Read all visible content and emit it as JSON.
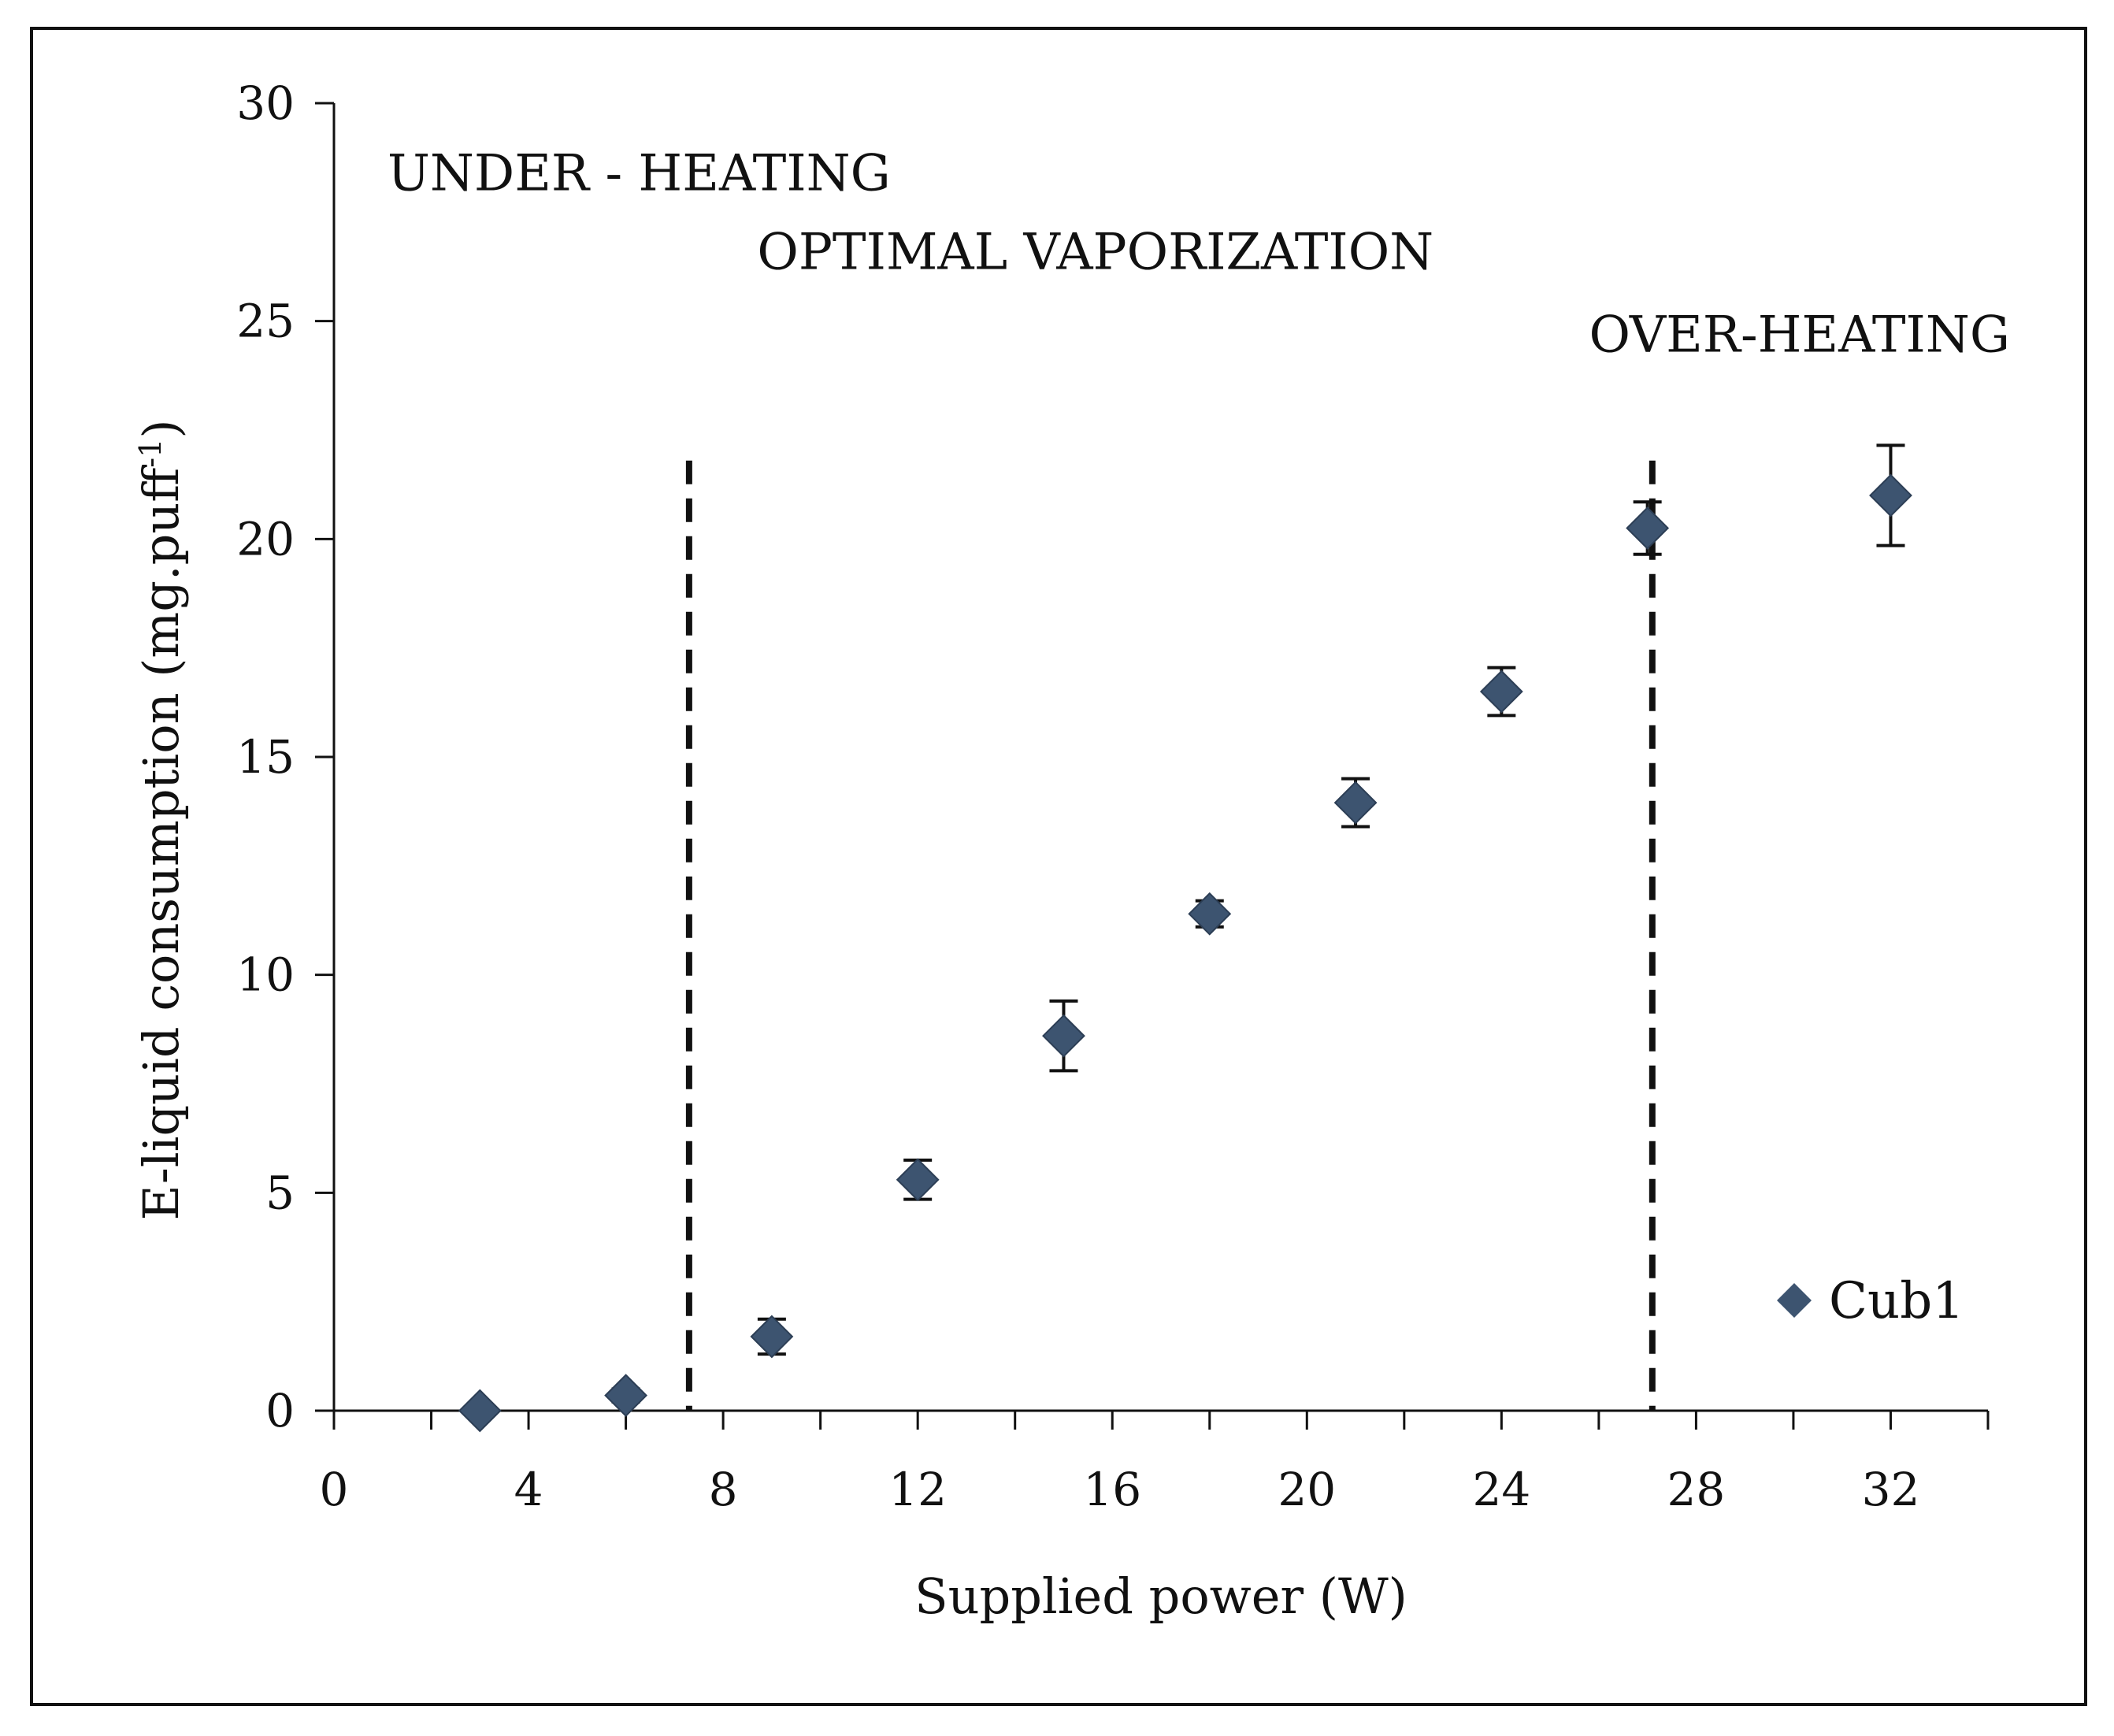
{
  "chart_data": {
    "type": "scatter",
    "xlabel": "Supplied power (W)",
    "ylabel": "E-liquid consumption (mg.puff",
    "ylabel_sup": "-1",
    "ylabel_close": ")",
    "xlim": [
      0,
      34
    ],
    "ylim": [
      0,
      30
    ],
    "xticks": [
      0,
      4,
      8,
      12,
      16,
      20,
      24,
      28,
      32
    ],
    "xminor_step": 2,
    "yticks": [
      0,
      5,
      10,
      15,
      20,
      25,
      30
    ],
    "grid": false,
    "legend_position": "bottom-right",
    "series": [
      {
        "name": "Cub1",
        "color": "#3d5470",
        "marker": "diamond",
        "points": [
          {
            "x": 3,
            "y": 0.0,
            "err": 0.0
          },
          {
            "x": 6,
            "y": 0.35,
            "err": 0.15
          },
          {
            "x": 9,
            "y": 1.7,
            "err": 0.4
          },
          {
            "x": 12,
            "y": 5.3,
            "err": 0.45
          },
          {
            "x": 15,
            "y": 8.6,
            "err": 0.8
          },
          {
            "x": 18,
            "y": 11.4,
            "err": 0.3
          },
          {
            "x": 21,
            "y": 13.95,
            "err": 0.55
          },
          {
            "x": 24,
            "y": 16.5,
            "err": 0.55
          },
          {
            "x": 27,
            "y": 20.25,
            "err": 0.6
          },
          {
            "x": 32,
            "y": 21.0,
            "err": 1.15
          }
        ]
      }
    ],
    "vlines": [
      {
        "x": 7.3,
        "y_top": 21.8,
        "style": "dashed"
      },
      {
        "x": 27.1,
        "y_top": 21.8,
        "style": "dashed"
      }
    ],
    "annotations": [
      {
        "text": "UNDER - HEATING",
        "x": 1.1,
        "y": 28.0
      },
      {
        "text": "OPTIMAL VAPORIZATION",
        "x": 8.7,
        "y": 26.2
      },
      {
        "text": "OVER-HEATING",
        "x": 25.8,
        "y": 24.3
      }
    ]
  }
}
